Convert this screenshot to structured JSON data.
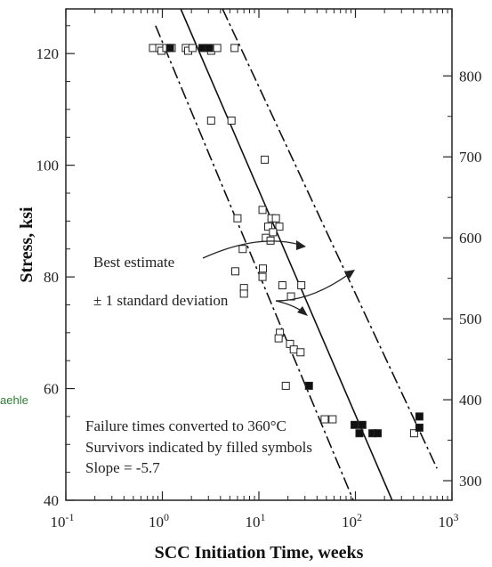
{
  "side_note": "aehle",
  "chart_data": {
    "type": "scatter",
    "xlabel": "SCC Initiation Time, weeks",
    "ylabel": "Stress, ksi",
    "x_scale": "log",
    "xlim": [
      0.1,
      1000
    ],
    "ylim": [
      40,
      128
    ],
    "x_ticks": [
      {
        "value": 0.1,
        "base": "10",
        "exp": "-1"
      },
      {
        "value": 1,
        "base": "10",
        "exp": "0"
      },
      {
        "value": 10,
        "base": "10",
        "exp": "1"
      },
      {
        "value": 100,
        "base": "10",
        "exp": "2"
      },
      {
        "value": 1000,
        "base": "10",
        "exp": "3"
      }
    ],
    "y_ticks_left": [
      {
        "value": 40,
        "label": "40"
      },
      {
        "value": 60,
        "label": "60"
      },
      {
        "value": 80,
        "label": "80"
      },
      {
        "value": 100,
        "label": "100"
      },
      {
        "value": 120,
        "label": "120"
      }
    ],
    "y_ticks_right": [
      {
        "value": 43.5,
        "label": "300"
      },
      {
        "value": 58.0,
        "label": "400"
      },
      {
        "value": 72.5,
        "label": "500"
      },
      {
        "value": 87.0,
        "label": "600"
      },
      {
        "value": 101.5,
        "label": "700"
      },
      {
        "value": 116.0,
        "label": "800"
      }
    ],
    "grid": false,
    "lines": [
      {
        "name": "Best estimate",
        "style": "solid",
        "points": [
          [
            1.55,
            128
          ],
          [
            240,
            40
          ]
        ]
      },
      {
        "name": "+1 standard deviation",
        "style": "dashdot",
        "points": [
          [
            4.2,
            128
          ],
          [
            700,
            45.7
          ]
        ]
      },
      {
        "name": "-1 standard deviation",
        "style": "dashdot",
        "points": [
          [
            0.85,
            125
          ],
          [
            95,
            40
          ]
        ]
      }
    ],
    "series": [
      {
        "name": "Failures",
        "marker": "open-square",
        "points": [
          [
            0.8,
            121
          ],
          [
            0.93,
            121
          ],
          [
            0.98,
            120.5
          ],
          [
            1.1,
            121
          ],
          [
            1.25,
            121
          ],
          [
            1.75,
            121
          ],
          [
            1.85,
            120.5
          ],
          [
            2.05,
            121
          ],
          [
            3.2,
            120.5
          ],
          [
            3.7,
            121
          ],
          [
            5.6,
            121
          ],
          [
            3.2,
            108
          ],
          [
            5.2,
            108
          ],
          [
            11.5,
            101
          ],
          [
            10.9,
            92
          ],
          [
            13.5,
            90.5
          ],
          [
            15.0,
            90.5
          ],
          [
            12.5,
            89
          ],
          [
            16.3,
            89
          ],
          [
            14.0,
            88
          ],
          [
            11.8,
            87
          ],
          [
            13.2,
            86.5
          ],
          [
            6.0,
            90.5
          ],
          [
            6.8,
            85
          ],
          [
            5.7,
            81
          ],
          [
            7.0,
            78
          ],
          [
            7.0,
            77
          ],
          [
            11.0,
            81.5
          ],
          [
            10.9,
            80
          ],
          [
            17.5,
            78.5
          ],
          [
            21.5,
            76.5
          ],
          [
            27.5,
            78.5
          ],
          [
            16.5,
            70
          ],
          [
            16.0,
            69
          ],
          [
            21.0,
            68
          ],
          [
            23.0,
            67
          ],
          [
            27.0,
            66.5
          ],
          [
            19.0,
            60.5
          ],
          [
            48,
            54.5
          ],
          [
            58,
            54.5
          ],
          [
            405,
            52
          ]
        ]
      },
      {
        "name": "Survivors",
        "marker": "filled-square",
        "points": [
          [
            1.2,
            121
          ],
          [
            2.6,
            121
          ],
          [
            3.05,
            121
          ],
          [
            33,
            60.5
          ],
          [
            98,
            53.5
          ],
          [
            118,
            53.5
          ],
          [
            110,
            52
          ],
          [
            150,
            52
          ],
          [
            170,
            52
          ],
          [
            460,
            55
          ],
          [
            460,
            53
          ]
        ]
      }
    ],
    "annotations": [
      {
        "text": "Best estimate"
      },
      {
        "text": "± 1 standard deviation"
      },
      {
        "text": "Failure times converted to 360°C"
      },
      {
        "text": "Survivors indicated by filled symbols"
      },
      {
        "text": "Slope = -5.7"
      }
    ]
  }
}
